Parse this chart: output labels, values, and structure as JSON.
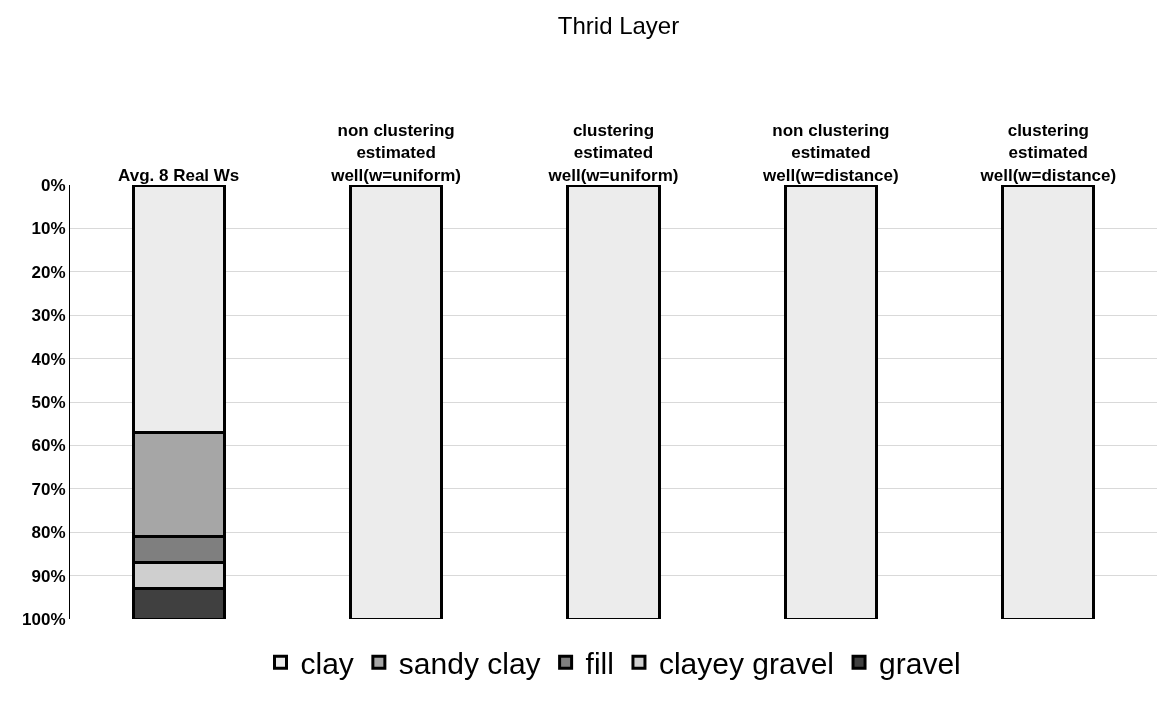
{
  "chart_data": {
    "type": "bar",
    "title": "Thrid Layer",
    "stacked": true,
    "categories": [
      "Avg. 8 Real Ws",
      "non clustering estimated well(w=uniform)",
      "clustering estimated well(w=uniform)",
      "non clustering estimated well(w=distance)",
      "clustering estimated well(w=distance)"
    ],
    "series": [
      {
        "name": "clay",
        "color": "#ececec",
        "values": [
          57,
          100,
          100,
          100,
          100
        ]
      },
      {
        "name": "sandy clay",
        "color": "#a6a6a6",
        "values": [
          24,
          0,
          0,
          0,
          0
        ]
      },
      {
        "name": "fill",
        "color": "#7f7f7f",
        "values": [
          6,
          0,
          0,
          0,
          0
        ]
      },
      {
        "name": "clayey gravel",
        "color": "#cfcfcf",
        "values": [
          6,
          0,
          0,
          0,
          0
        ]
      },
      {
        "name": "gravel",
        "color": "#404040",
        "values": [
          7,
          0,
          0,
          0,
          0
        ]
      }
    ],
    "ylim": [
      100,
      0
    ],
    "yticks": [
      {
        "value": 0,
        "label": "0%"
      },
      {
        "value": 10,
        "label": "10%"
      },
      {
        "value": 20,
        "label": "20%"
      },
      {
        "value": 30,
        "label": "30%"
      },
      {
        "value": 40,
        "label": "40%"
      },
      {
        "value": 50,
        "label": "50%"
      },
      {
        "value": 60,
        "label": "60%"
      },
      {
        "value": 70,
        "label": "70%"
      },
      {
        "value": 80,
        "label": "80%"
      },
      {
        "value": 90,
        "label": "90%"
      },
      {
        "value": 100,
        "label": "100%"
      }
    ],
    "grid": "y",
    "legend": "bottom"
  }
}
